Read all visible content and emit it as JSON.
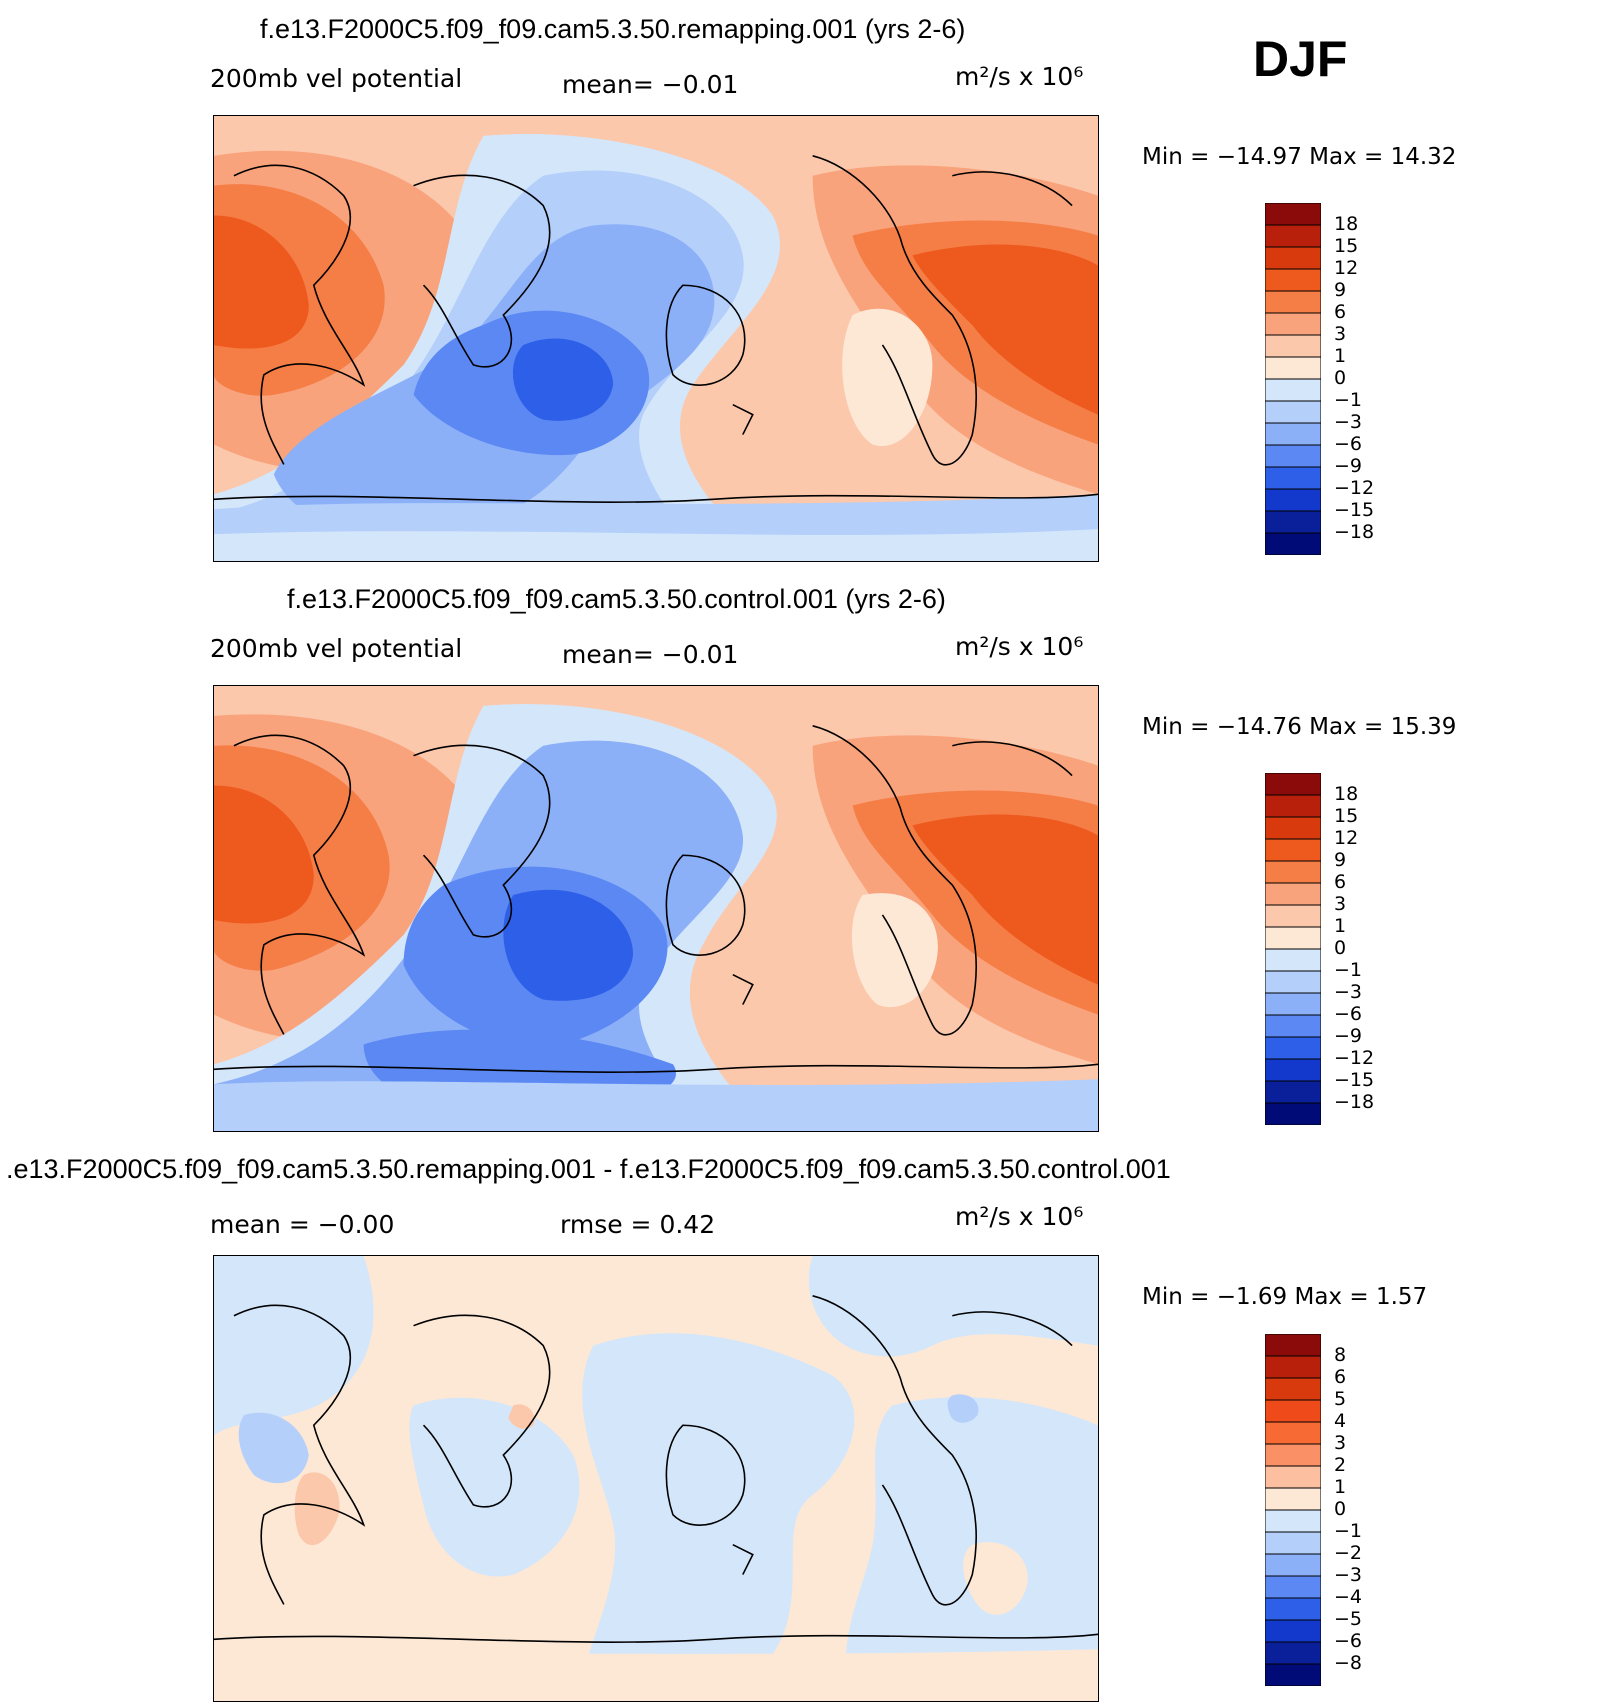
{
  "season": "DJF",
  "panels": [
    {
      "title": "f.e13.F2000C5.f09_f09.cam5.3.50.remapping.001 (yrs 2-6)",
      "left_label": "200mb vel potential",
      "center_label": "mean=   −0.01",
      "units": "m²/s x 10⁶",
      "min_max": "Min = −14.97 Max =   14.32",
      "colorbar_labels": [
        "18",
        "15",
        "12",
        "9",
        "6",
        "3",
        "1",
        "0",
        "−1",
        "−3",
        "−6",
        "−9",
        "−12",
        "−15",
        "−18"
      ],
      "colorbar_colors": [
        "#8b0a0a",
        "#b8200c",
        "#d83a0e",
        "#ee5a1e",
        "#f57d46",
        "#f9a37c",
        "#fcc8ab",
        "#fde8d6",
        "#d4e6fa",
        "#b3cffa",
        "#8bb0f8",
        "#5b88f3",
        "#2e5fe8",
        "#1239cc",
        "#0a1f9a",
        "#000b78"
      ]
    },
    {
      "title": "f.e13.F2000C5.f09_f09.cam5.3.50.control.001 (yrs 2-6)",
      "left_label": "200mb vel potential",
      "center_label": "mean=   −0.01",
      "units": "m²/s x 10⁶",
      "min_max": "Min = −14.76 Max =   15.39",
      "colorbar_labels": [
        "18",
        "15",
        "12",
        "9",
        "6",
        "3",
        "1",
        "0",
        "−1",
        "−3",
        "−6",
        "−9",
        "−12",
        "−15",
        "−18"
      ],
      "colorbar_colors": [
        "#8b0a0a",
        "#b8200c",
        "#d83a0e",
        "#ee5a1e",
        "#f57d46",
        "#f9a37c",
        "#fcc8ab",
        "#fde8d6",
        "#d4e6fa",
        "#b3cffa",
        "#8bb0f8",
        "#5b88f3",
        "#2e5fe8",
        "#1239cc",
        "#0a1f9a",
        "#000b78"
      ]
    },
    {
      "title": ".e13.F2000C5.f09_f09.cam5.3.50.remapping.001 - f.e13.F2000C5.f09_f09.cam5.3.50.control.001",
      "left_label": "mean =   −0.00",
      "center_label": "rmse =     0.42",
      "units": "m²/s x 10⁶",
      "min_max": "Min =   −1.69 Max =    1.57",
      "colorbar_labels": [
        "8",
        "6",
        "5",
        "4",
        "3",
        "2",
        "1",
        "0",
        "−1",
        "−2",
        "−3",
        "−4",
        "−5",
        "−6",
        "−8"
      ],
      "colorbar_colors": [
        "#8b0a0a",
        "#b8200c",
        "#d83a0e",
        "#ee4a1a",
        "#f76a34",
        "#f99066",
        "#fcc0a0",
        "#fde8d6",
        "#d4e6fa",
        "#b3cffa",
        "#8bb0f8",
        "#5b88f3",
        "#2e5fe8",
        "#1239cc",
        "#0a1f9a",
        "#000b78"
      ]
    }
  ]
}
